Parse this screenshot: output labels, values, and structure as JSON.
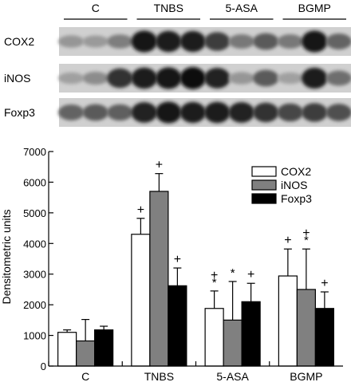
{
  "blot": {
    "groups": [
      "C",
      "TNBS",
      "5-ASA",
      "BGMP"
    ],
    "rows": [
      "COX2",
      "iNOS",
      "Foxp3"
    ],
    "intensity": {
      "COX2": [
        [
          0.3,
          0.28,
          0.42
        ],
        [
          0.95,
          0.92,
          0.9
        ],
        [
          0.75,
          0.45,
          0.6
        ],
        [
          0.45,
          0.95,
          0.55
        ]
      ],
      "iNOS": [
        [
          0.25,
          0.35,
          0.8
        ],
        [
          0.92,
          0.95,
          0.98
        ],
        [
          0.88,
          0.3,
          0.6
        ],
        [
          0.25,
          0.9,
          0.5
        ]
      ],
      "Foxp3": [
        [
          0.55,
          0.6,
          0.58
        ],
        [
          0.88,
          0.95,
          0.9
        ],
        [
          0.92,
          0.88,
          0.8
        ],
        [
          0.7,
          0.75,
          0.65
        ]
      ]
    }
  },
  "chart_data": {
    "type": "bar",
    "ylabel": "Densitometric units",
    "xlabel": "",
    "ylim": [
      0,
      7000
    ],
    "yticks": [
      0,
      1000,
      2000,
      3000,
      4000,
      5000,
      6000,
      7000
    ],
    "categories": [
      "C",
      "TNBS",
      "5-ASA",
      "BGMP"
    ],
    "legend_position": "top-right",
    "series": [
      {
        "name": "COX2",
        "color": "#ffffff",
        "values": [
          1100,
          4300,
          1880,
          2940
        ],
        "errors": [
          80,
          520,
          570,
          880
        ]
      },
      {
        "name": "iNOS",
        "color": "#808080",
        "values": [
          820,
          5700,
          1500,
          2500
        ],
        "errors": [
          700,
          580,
          1260,
          1320
        ]
      },
      {
        "name": "Foxp3",
        "color": "#000000",
        "values": [
          1180,
          2620,
          2100,
          1880
        ],
        "errors": [
          120,
          580,
          600,
          540
        ]
      }
    ],
    "annotations": [
      {
        "series": "COX2",
        "category": "TNBS",
        "marks": [
          "+"
        ]
      },
      {
        "series": "iNOS",
        "category": "TNBS",
        "marks": [
          "+"
        ]
      },
      {
        "series": "Foxp3",
        "category": "TNBS",
        "marks": [
          "+"
        ]
      },
      {
        "series": "COX2",
        "category": "5-ASA",
        "marks": [
          "+",
          "*"
        ]
      },
      {
        "series": "iNOS",
        "category": "5-ASA",
        "marks": [
          "*"
        ]
      },
      {
        "series": "Foxp3",
        "category": "5-ASA",
        "marks": [
          "+"
        ]
      },
      {
        "series": "COX2",
        "category": "BGMP",
        "marks": [
          "+"
        ]
      },
      {
        "series": "iNOS",
        "category": "BGMP",
        "marks": [
          "+",
          "*"
        ]
      },
      {
        "series": "Foxp3",
        "category": "BGMP",
        "marks": [
          "+"
        ]
      }
    ]
  }
}
